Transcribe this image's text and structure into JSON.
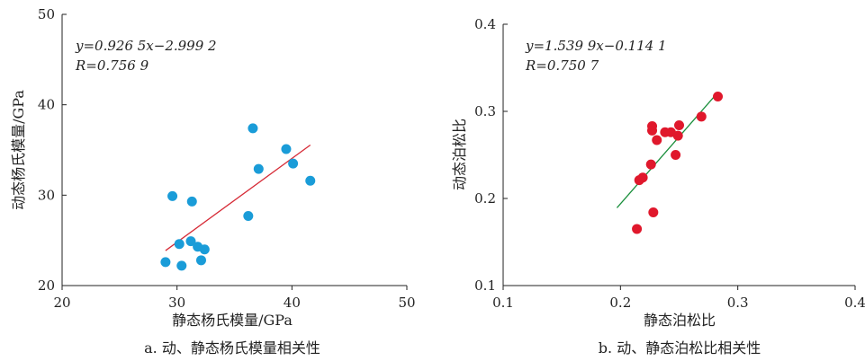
{
  "chart_data": [
    {
      "type": "scatter",
      "title": "",
      "caption": "a. 动、静态杨氏模量相关性",
      "xlabel": "静态杨氏模量/GPa",
      "ylabel": "动态杨氏模量/GPa",
      "xlim": [
        20,
        50
      ],
      "ylim": [
        20,
        50
      ],
      "xticks": [
        "20",
        "30",
        "40",
        "50"
      ],
      "yticks": [
        "20",
        "30",
        "40",
        "50"
      ],
      "equation": "y=0.926 5x−2.999 2",
      "r_text": "R=0.756 9",
      "point_color": "#1a9cd8",
      "line_color": "#d62a36",
      "grid": false,
      "points": [
        [
          29.0,
          22.6
        ],
        [
          30.4,
          22.2
        ],
        [
          30.2,
          24.6
        ],
        [
          31.2,
          24.9
        ],
        [
          31.8,
          24.3
        ],
        [
          32.4,
          24.0
        ],
        [
          32.1,
          22.8
        ],
        [
          29.6,
          29.9
        ],
        [
          31.3,
          29.3
        ],
        [
          36.2,
          27.7
        ],
        [
          36.6,
          37.4
        ],
        [
          37.1,
          32.9
        ],
        [
          39.5,
          35.1
        ],
        [
          40.1,
          33.5
        ],
        [
          41.6,
          31.6
        ]
      ],
      "fit_line": {
        "slope": 0.9265,
        "intercept": -2.9992,
        "x_range": [
          29.0,
          41.6
        ]
      }
    },
    {
      "type": "scatter",
      "title": "",
      "caption": "b. 动、静态泊松比相关性",
      "xlabel": "静态泊松比",
      "ylabel": "动态泊松比",
      "xlim": [
        0.1,
        0.4
      ],
      "ylim": [
        0.1,
        0.4
      ],
      "xticks": [
        "0.1",
        "0.2",
        "0.3",
        "0.4"
      ],
      "yticks": [
        "0.1",
        "0.2",
        "0.3",
        "0.4"
      ],
      "equation": "y=1.539 9x−0.114 1",
      "r_text": "R=0.750 7",
      "point_color": "#e0182c",
      "line_color": "#1a8f3c",
      "grid": false,
      "points": [
        [
          0.214,
          0.165
        ],
        [
          0.216,
          0.221
        ],
        [
          0.219,
          0.224
        ],
        [
          0.226,
          0.239
        ],
        [
          0.228,
          0.184
        ],
        [
          0.227,
          0.278
        ],
        [
          0.227,
          0.283
        ],
        [
          0.231,
          0.267
        ],
        [
          0.238,
          0.276
        ],
        [
          0.243,
          0.276
        ],
        [
          0.247,
          0.25
        ],
        [
          0.249,
          0.272
        ],
        [
          0.25,
          0.284
        ],
        [
          0.269,
          0.294
        ],
        [
          0.283,
          0.317
        ]
      ],
      "fit_line": {
        "slope": 1.5399,
        "intercept": -0.1141,
        "x_range": [
          0.197,
          0.282
        ]
      }
    }
  ]
}
